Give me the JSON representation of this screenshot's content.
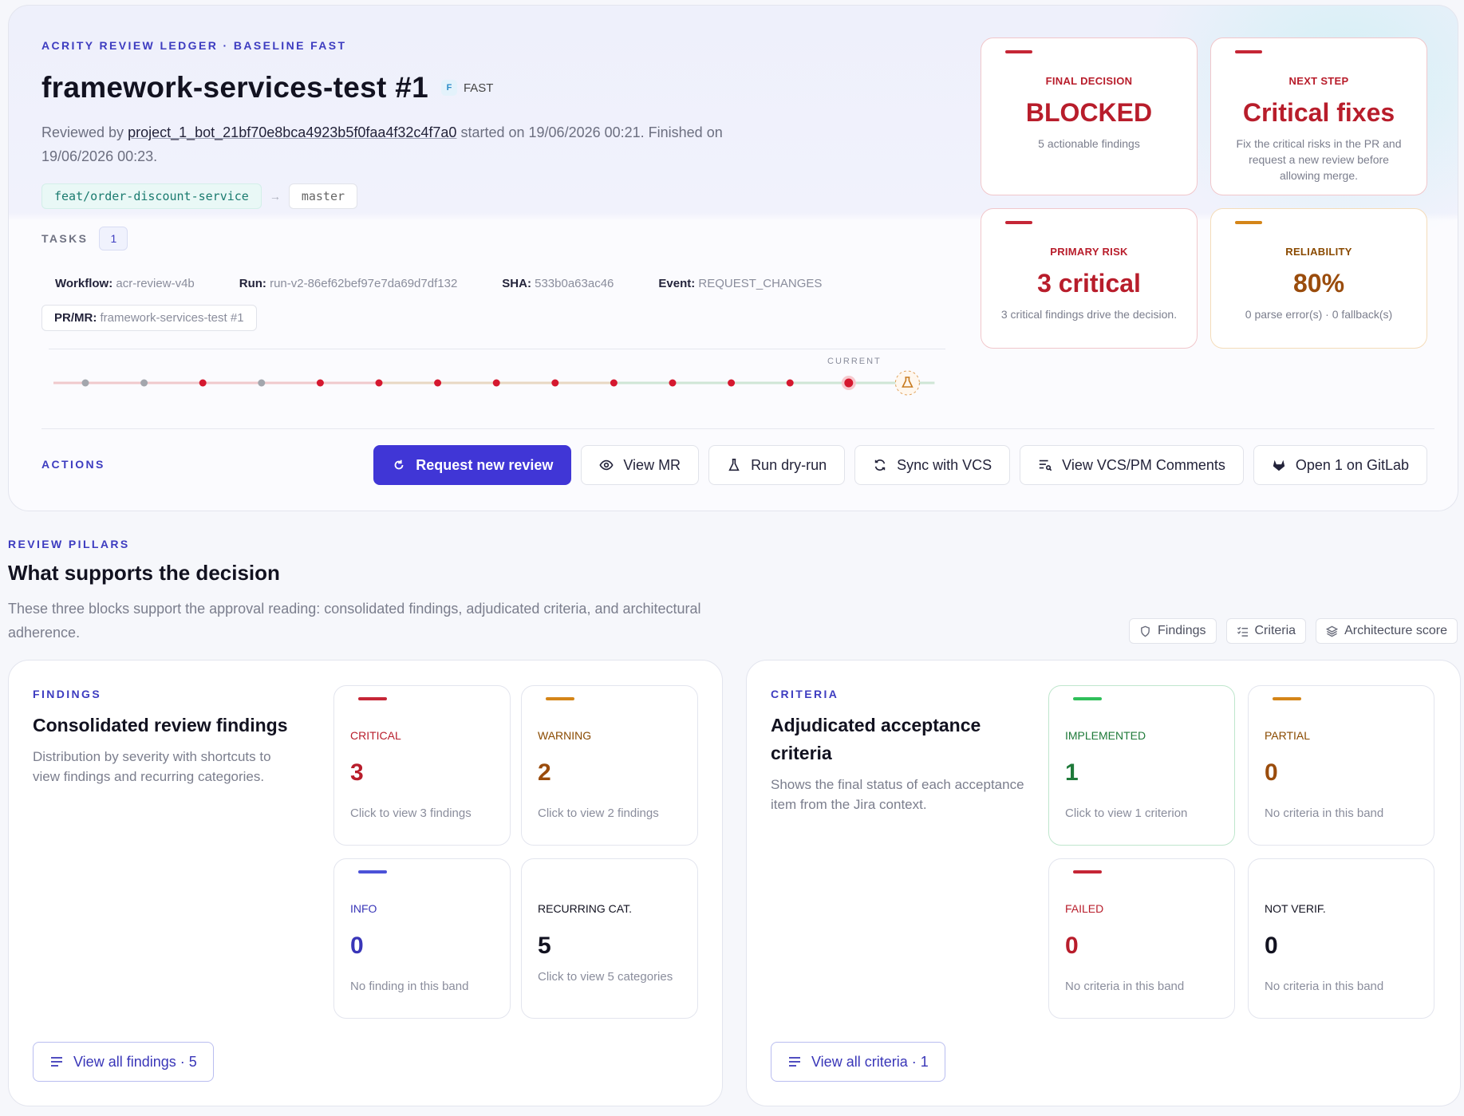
{
  "header": {
    "ledger": "ACRITY REVIEW LEDGER · BASELINE FAST",
    "title": "framework-services-test #1",
    "mode_letter": "F",
    "mode_label": "FAST",
    "reviewed_prefix": "Reviewed by",
    "reviewer": "project_1_bot_21bf70e8bca4923b5f0faa4f32c4f7a0",
    "reviewed_suffix": "started on 19/06/2026 00:21. Finished on 19/06/2026 00:23.",
    "source_branch": "feat/order-discount-service",
    "arrow": "→",
    "target_branch": "master",
    "tasks_label": "TASKS",
    "tasks_count": "1",
    "workflow_label": "Workflow:",
    "workflow": "acr-review-v4b",
    "run_label": "Run:",
    "run": "run-v2-86ef62bef97e7da69d7df132",
    "sha_label": "SHA:",
    "sha": "533b0a63ac46",
    "event_label": "Event:",
    "event": "REQUEST_CHANGES",
    "pr_label": "PR/MR:",
    "pr": "framework-services-test #1",
    "timeline_current": "CURRENT",
    "timeline_dots": [
      "grey",
      "grey",
      "red",
      "grey",
      "red",
      "red",
      "red",
      "red",
      "red",
      "red",
      "red",
      "red",
      "red",
      "current",
      "flask"
    ],
    "actions_label": "ACTIONS",
    "actions": [
      {
        "label": "Request new review",
        "icon": "refresh-icon"
      },
      {
        "label": "View MR",
        "icon": "eye-icon"
      },
      {
        "label": "Run dry-run",
        "icon": "flask-icon"
      },
      {
        "label": "Sync with VCS",
        "icon": "sync-icon"
      },
      {
        "label": "View VCS/PM Comments",
        "icon": "comments-icon"
      },
      {
        "label": "Open 1 on GitLab",
        "icon": "gitlab-icon"
      }
    ]
  },
  "kpis": {
    "final_decision": {
      "label": "FINAL DECISION",
      "value": "BLOCKED",
      "desc": "5 actionable findings"
    },
    "next_step": {
      "label": "NEXT STEP",
      "value": "Critical fixes",
      "desc": "Fix the critical risks in the PR and request a new review before allowing merge."
    },
    "primary_risk": {
      "label": "PRIMARY RISK",
      "value": "3 critical",
      "desc": "3 critical findings drive the decision."
    },
    "reliability": {
      "label": "RELIABILITY",
      "value": "80%",
      "desc": "0 parse error(s) · 0 fallback(s)"
    }
  },
  "colors": {
    "accent": "#4036d6",
    "critical": "#c52636",
    "warning": "#d48518",
    "implemented": "#2fbf5a",
    "info": "#4b52d8"
  },
  "pillars": {
    "eyebrow": "REVIEW PILLARS",
    "title": "What supports the decision",
    "desc": "These three blocks support the approval reading: consolidated findings, adjudicated criteria, and architectural adherence.",
    "nav": [
      {
        "label": "Findings",
        "icon": "shield-icon"
      },
      {
        "label": "Criteria",
        "icon": "checklist-icon"
      },
      {
        "label": "Architecture score",
        "icon": "layers-icon"
      }
    ]
  },
  "findings": {
    "eyebrow": "FINDINGS",
    "title": "Consolidated review findings",
    "desc": "Distribution by severity with shortcuts to view findings and recurring categories.",
    "critical": {
      "label": "CRITICAL",
      "value": "3",
      "desc": "Click to view 3 findings"
    },
    "warning": {
      "label": "WARNING",
      "value": "2",
      "desc": "Click to view 2 findings"
    },
    "info": {
      "label": "INFO",
      "value": "0",
      "desc": "No finding in this band"
    },
    "recurring": {
      "label": "RECURRING CAT.",
      "value": "5",
      "desc": "Click to view 5 categories"
    },
    "view_all": "View all findings · 5"
  },
  "criteria": {
    "eyebrow": "CRITERIA",
    "title": "Adjudicated acceptance criteria",
    "desc": "Shows the final status of each acceptance item from the Jira context.",
    "implemented": {
      "label": "IMPLEMENTED",
      "value": "1",
      "desc": "Click to view 1 criterion"
    },
    "partial": {
      "label": "PARTIAL",
      "value": "0",
      "desc": "No criteria in this band"
    },
    "failed": {
      "label": "FAILED",
      "value": "0",
      "desc": "No criteria in this band"
    },
    "not_verified": {
      "label": "NOT VERIF.",
      "value": "0",
      "desc": "No criteria in this band"
    },
    "view_all": "View all criteria · 1"
  }
}
